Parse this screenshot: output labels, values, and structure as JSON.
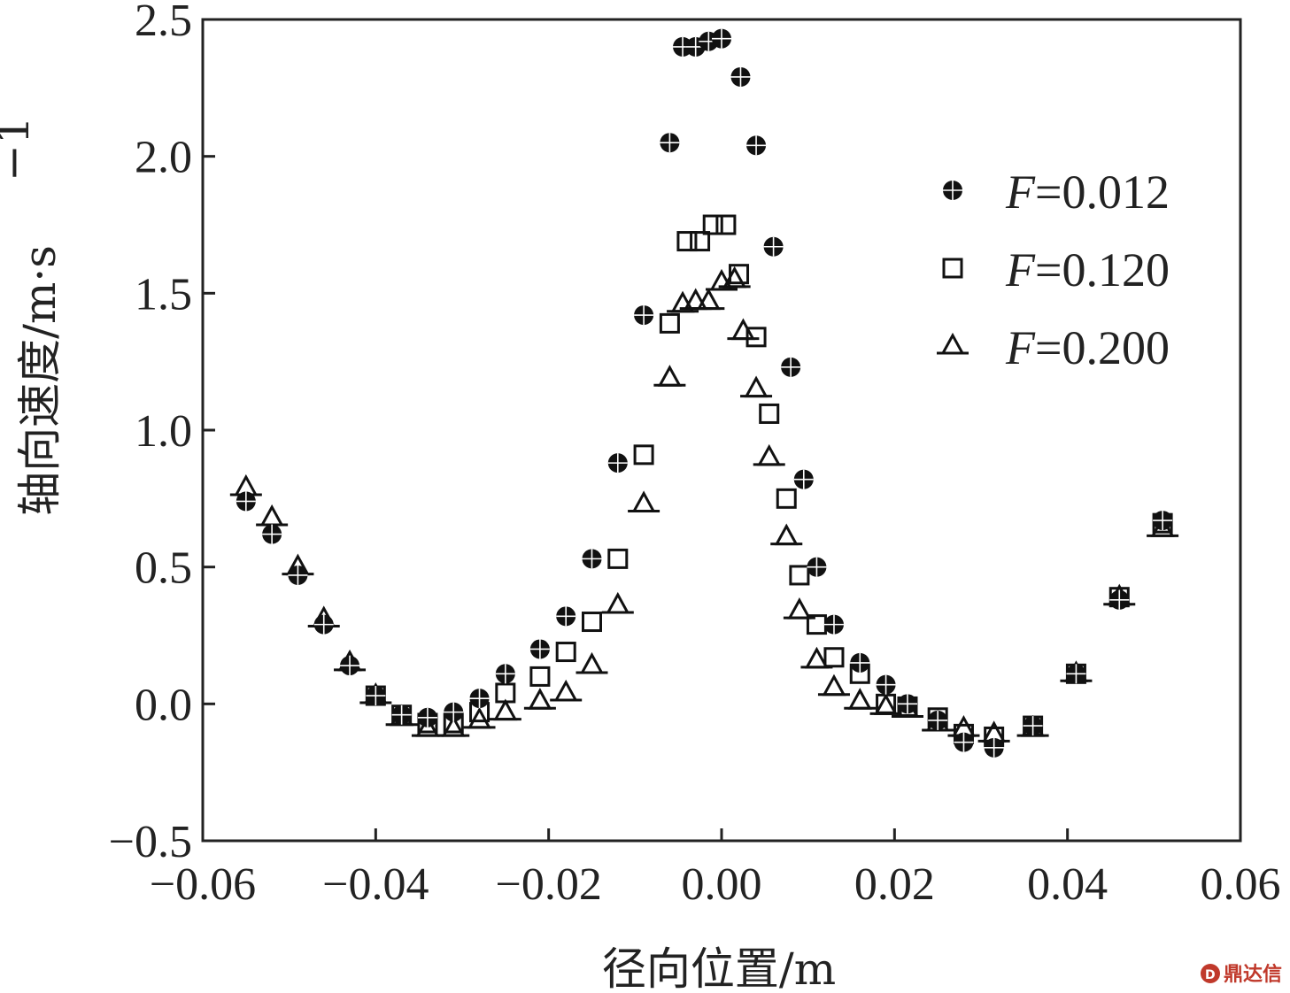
{
  "chart_data": {
    "type": "scatter",
    "xlabel": "径向位置/m",
    "ylabel": "轴向速度/m·s",
    "ylabel_superscript": "−1",
    "xlim": [
      -0.06,
      0.06
    ],
    "ylim": [
      -0.5,
      2.5
    ],
    "x_ticks": [
      -0.06,
      -0.04,
      -0.02,
      0.0,
      0.02,
      0.04,
      0.06
    ],
    "x_tick_labels": [
      "−0.06",
      "−0.04",
      "−0.02",
      "0.00",
      "0.02",
      "0.04",
      "0.06"
    ],
    "y_ticks": [
      -0.5,
      0.0,
      0.5,
      1.0,
      1.5,
      2.0,
      2.5
    ],
    "y_tick_labels": [
      "−0.5",
      "0.0",
      "0.5",
      "1.0",
      "1.5",
      "2.0",
      "2.5"
    ],
    "grid": false,
    "legend_position": "top-right",
    "series": [
      {
        "name": "F=0.012",
        "marker": "circle-cross",
        "points": [
          [
            -0.055,
            0.74
          ],
          [
            -0.052,
            0.62
          ],
          [
            -0.049,
            0.47
          ],
          [
            -0.046,
            0.29
          ],
          [
            -0.043,
            0.14
          ],
          [
            -0.04,
            0.03
          ],
          [
            -0.037,
            -0.04
          ],
          [
            -0.034,
            -0.05
          ],
          [
            -0.031,
            -0.03
          ],
          [
            -0.028,
            0.02
          ],
          [
            -0.025,
            0.11
          ],
          [
            -0.021,
            0.2
          ],
          [
            -0.018,
            0.32
          ],
          [
            -0.015,
            0.53
          ],
          [
            -0.012,
            0.88
          ],
          [
            -0.009,
            1.42
          ],
          [
            -0.006,
            2.05
          ],
          [
            -0.0045,
            2.4
          ],
          [
            -0.003,
            2.4
          ],
          [
            -0.0015,
            2.42
          ],
          [
            0.0,
            2.43
          ],
          [
            0.0022,
            2.29
          ],
          [
            0.004,
            2.04
          ],
          [
            0.006,
            1.67
          ],
          [
            0.008,
            1.23
          ],
          [
            0.0095,
            0.82
          ],
          [
            0.011,
            0.5
          ],
          [
            0.013,
            0.29
          ],
          [
            0.016,
            0.15
          ],
          [
            0.019,
            0.07
          ],
          [
            0.0215,
            0.0
          ],
          [
            0.025,
            -0.06
          ],
          [
            0.028,
            -0.14
          ],
          [
            0.0315,
            -0.16
          ],
          [
            0.036,
            -0.08
          ],
          [
            0.041,
            0.11
          ],
          [
            0.046,
            0.38
          ],
          [
            0.051,
            0.67
          ]
        ]
      },
      {
        "name": "F=0.120",
        "marker": "open-square",
        "points": [
          [
            -0.04,
            0.03
          ],
          [
            -0.037,
            -0.04
          ],
          [
            -0.034,
            -0.07
          ],
          [
            -0.031,
            -0.07
          ],
          [
            -0.028,
            -0.03
          ],
          [
            -0.025,
            0.04
          ],
          [
            -0.021,
            0.1
          ],
          [
            -0.018,
            0.19
          ],
          [
            -0.015,
            0.3
          ],
          [
            -0.012,
            0.53
          ],
          [
            -0.009,
            0.91
          ],
          [
            -0.006,
            1.39
          ],
          [
            -0.004,
            1.69
          ],
          [
            -0.0025,
            1.69
          ],
          [
            -0.001,
            1.75
          ],
          [
            0.0005,
            1.75
          ],
          [
            0.002,
            1.57
          ],
          [
            0.004,
            1.34
          ],
          [
            0.0055,
            1.06
          ],
          [
            0.0075,
            0.75
          ],
          [
            0.009,
            0.47
          ],
          [
            0.011,
            0.29
          ],
          [
            0.013,
            0.17
          ],
          [
            0.016,
            0.11
          ],
          [
            0.019,
            0.0
          ],
          [
            0.0215,
            -0.01
          ],
          [
            0.025,
            -0.05
          ],
          [
            0.028,
            -0.11
          ],
          [
            0.0315,
            -0.12
          ],
          [
            0.036,
            -0.08
          ],
          [
            0.041,
            0.11
          ],
          [
            0.046,
            0.39
          ],
          [
            0.051,
            0.66
          ]
        ]
      },
      {
        "name": "F=0.200",
        "marker": "open-triangle",
        "points": [
          [
            -0.055,
            0.79
          ],
          [
            -0.052,
            0.68
          ],
          [
            -0.049,
            0.5
          ],
          [
            -0.046,
            0.31
          ],
          [
            -0.043,
            0.15
          ],
          [
            -0.04,
            0.03
          ],
          [
            -0.037,
            -0.05
          ],
          [
            -0.034,
            -0.09
          ],
          [
            -0.031,
            -0.09
          ],
          [
            -0.028,
            -0.06
          ],
          [
            -0.025,
            -0.03
          ],
          [
            -0.021,
            0.01
          ],
          [
            -0.018,
            0.04
          ],
          [
            -0.015,
            0.14
          ],
          [
            -0.012,
            0.36
          ],
          [
            -0.009,
            0.73
          ],
          [
            -0.006,
            1.19
          ],
          [
            -0.0045,
            1.46
          ],
          [
            -0.003,
            1.47
          ],
          [
            -0.0015,
            1.47
          ],
          [
            0.0,
            1.54
          ],
          [
            0.0015,
            1.55
          ],
          [
            0.0025,
            1.36
          ],
          [
            0.004,
            1.15
          ],
          [
            0.0055,
            0.9
          ],
          [
            0.0075,
            0.61
          ],
          [
            0.009,
            0.34
          ],
          [
            0.011,
            0.16
          ],
          [
            0.013,
            0.06
          ],
          [
            0.016,
            0.01
          ],
          [
            0.019,
            -0.01
          ],
          [
            0.0215,
            -0.02
          ],
          [
            0.025,
            -0.07
          ],
          [
            0.028,
            -0.09
          ],
          [
            0.0315,
            -0.11
          ],
          [
            0.036,
            -0.09
          ],
          [
            0.041,
            0.11
          ],
          [
            0.046,
            0.39
          ],
          [
            0.051,
            0.64
          ]
        ]
      }
    ]
  },
  "watermark": {
    "text": "鼎达信",
    "kind": "logo"
  }
}
